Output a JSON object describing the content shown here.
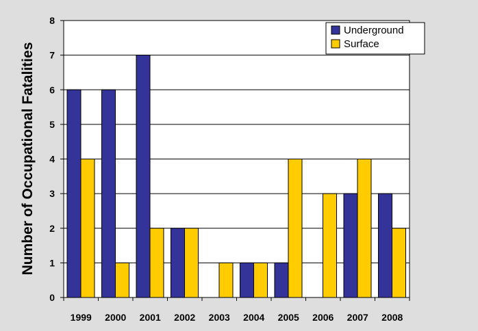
{
  "chart_data": {
    "type": "bar",
    "title": "",
    "xlabel": "",
    "ylabel": "Number of Occupational Fatalities",
    "categories": [
      "1999",
      "2000",
      "2001",
      "2002",
      "2003",
      "2004",
      "2005",
      "2006",
      "2007",
      "2008"
    ],
    "series": [
      {
        "name": "Underground",
        "color": "#333399",
        "values": [
          6,
          6,
          7,
          2,
          0,
          1,
          1,
          0,
          3,
          3
        ]
      },
      {
        "name": "Surface",
        "color": "#ffcc00",
        "values": [
          4,
          1,
          2,
          2,
          1,
          1,
          4,
          3,
          4,
          2
        ]
      }
    ],
    "ylim": [
      0,
      8
    ],
    "yticks": [
      0,
      1,
      2,
      3,
      4,
      5,
      6,
      7,
      8
    ],
    "grid": true,
    "legend_position": "top-right",
    "colors": {
      "plot_background": "#ffffff",
      "frame_background": "#dedede",
      "gridline": "#000000"
    }
  }
}
